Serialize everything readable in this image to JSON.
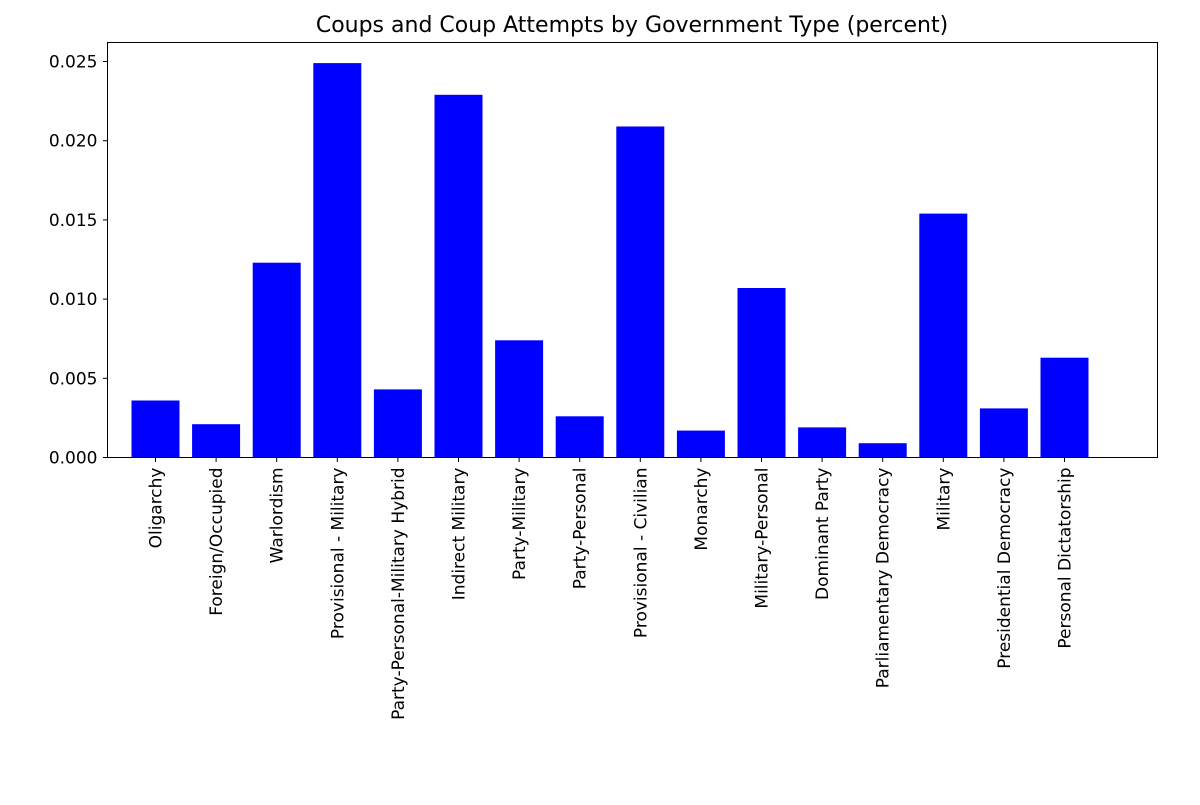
{
  "chart_data": {
    "type": "bar",
    "title": "Coups and Coup Attempts by Government Type (percent)",
    "xlabel": "",
    "ylabel": "",
    "categories": [
      "Oligarchy",
      "Foreign/Occupied",
      "Warlordism",
      "Provisional - Military",
      "Party-Personal-Military Hybrid",
      "Indirect Military",
      "Party-Military",
      "Party-Personal",
      "Provisional - Civilian",
      "Monarchy",
      "Military-Personal",
      "Dominant Party",
      "Parliamentary Democracy",
      "Military",
      "Presidential Democracy",
      "Personal Dictatorship"
    ],
    "values": [
      0.0036,
      0.0021,
      0.0123,
      0.0249,
      0.0043,
      0.0229,
      0.0074,
      0.0026,
      0.0209,
      0.0017,
      0.0107,
      0.0019,
      0.0009,
      0.0154,
      0.0031,
      0.0063
    ],
    "ylim": [
      0,
      0.0262
    ],
    "yticks": [
      "0.000",
      "0.005",
      "0.010",
      "0.015",
      "0.020",
      "0.025"
    ],
    "ytick_values": [
      0,
      0.005,
      0.01,
      0.015,
      0.02,
      0.025
    ],
    "grid": false,
    "legend": "none",
    "bar_color": "#0000ff"
  }
}
